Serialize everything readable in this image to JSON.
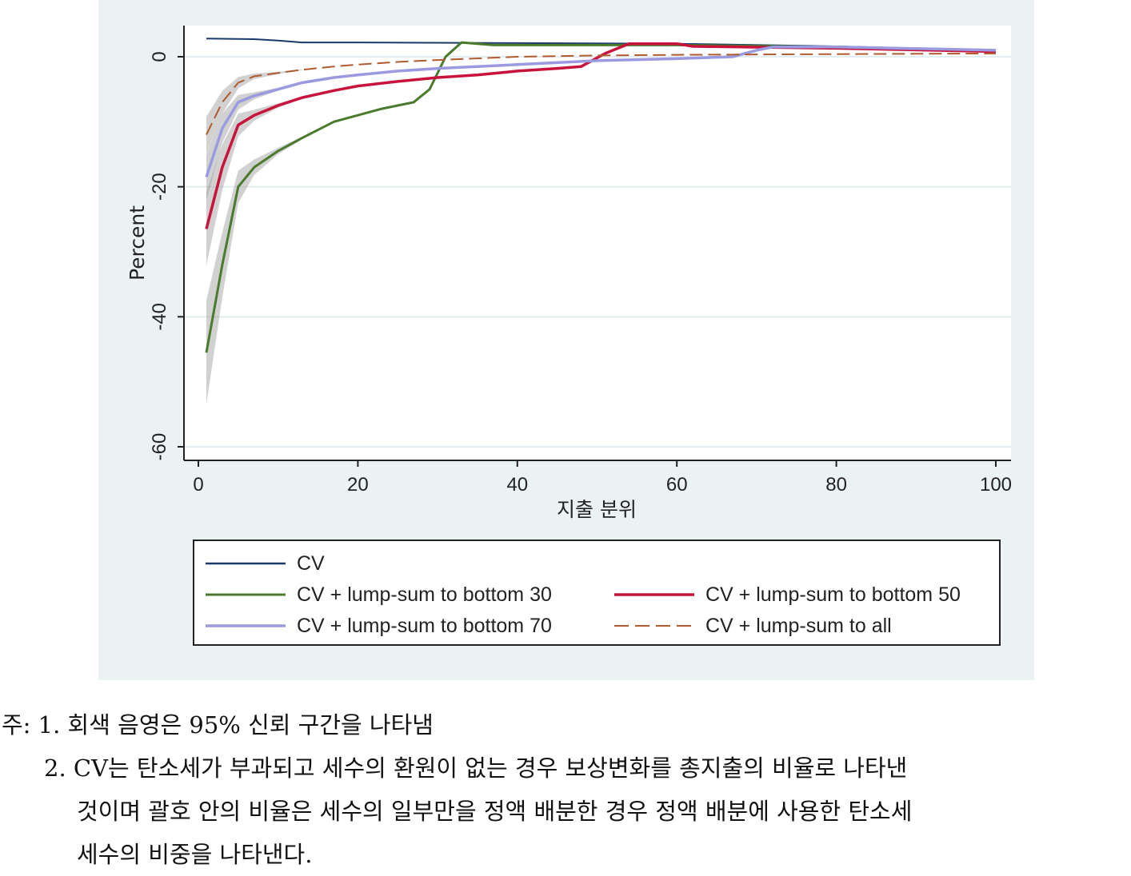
{
  "chart_data": {
    "type": "line",
    "title": "",
    "xlabel": "지출 분위",
    "ylabel": "Percent",
    "xlim": [
      0,
      100
    ],
    "ylim": [
      -60,
      5
    ],
    "x_ticks": [
      0,
      20,
      40,
      60,
      80,
      100
    ],
    "y_ticks": [
      0,
      -20,
      -40,
      -60
    ],
    "grid": true,
    "legend_position": "bottom",
    "shaded_band": "95% confidence interval (gray)",
    "series": [
      {
        "name": "CV",
        "color": "#1a3a6b",
        "dash": "solid",
        "points": [
          [
            1,
            2.8
          ],
          [
            7,
            2.7
          ],
          [
            10,
            2.5
          ],
          [
            13,
            2.2
          ],
          [
            20,
            2.2
          ],
          [
            40,
            2.1
          ],
          [
            60,
            2.0
          ],
          [
            80,
            1.6
          ],
          [
            100,
            1.0
          ]
        ]
      },
      {
        "name": "CV + lump-sum to bottom 30",
        "color": "#4a7a2c",
        "dash": "solid",
        "points": [
          [
            1,
            -45.5
          ],
          [
            3,
            -32
          ],
          [
            5,
            -20
          ],
          [
            7,
            -17
          ],
          [
            10,
            -14.5
          ],
          [
            13,
            -12.5
          ],
          [
            17,
            -10
          ],
          [
            20,
            -9
          ],
          [
            23,
            -8
          ],
          [
            27,
            -7
          ],
          [
            29,
            -5
          ],
          [
            31,
            0
          ],
          [
            33,
            2.2
          ],
          [
            37,
            1.8
          ],
          [
            50,
            1.8
          ],
          [
            60,
            1.8
          ],
          [
            80,
            1.5
          ],
          [
            100,
            1.0
          ]
        ]
      },
      {
        "name": "CV + lump-sum to bottom 50",
        "color": "#c8143c",
        "dash": "solid",
        "points": [
          [
            1,
            -26.5
          ],
          [
            3,
            -17
          ],
          [
            5,
            -10.5
          ],
          [
            7,
            -9
          ],
          [
            10,
            -7.5
          ],
          [
            13,
            -6.3
          ],
          [
            17,
            -5.2
          ],
          [
            20,
            -4.5
          ],
          [
            25,
            -3.8
          ],
          [
            30,
            -3.2
          ],
          [
            35,
            -2.8
          ],
          [
            40,
            -2.2
          ],
          [
            45,
            -1.8
          ],
          [
            48,
            -1.5
          ],
          [
            51,
            0.5
          ],
          [
            54,
            2.0
          ],
          [
            60,
            2.0
          ],
          [
            62,
            1.6
          ],
          [
            80,
            1.3
          ],
          [
            100,
            0.8
          ]
        ]
      },
      {
        "name": "CV + lump-sum to bottom 70",
        "color": "#9a9ae0",
        "dash": "solid",
        "points": [
          [
            1,
            -18.5
          ],
          [
            3,
            -11
          ],
          [
            5,
            -7
          ],
          [
            7,
            -6
          ],
          [
            10,
            -5
          ],
          [
            13,
            -4
          ],
          [
            17,
            -3.2
          ],
          [
            20,
            -2.8
          ],
          [
            25,
            -2.2
          ],
          [
            30,
            -1.8
          ],
          [
            40,
            -1.2
          ],
          [
            50,
            -0.6
          ],
          [
            60,
            -0.3
          ],
          [
            67,
            0
          ],
          [
            70,
            1.0
          ],
          [
            72,
            1.5
          ],
          [
            80,
            1.5
          ],
          [
            100,
            1.0
          ]
        ]
      },
      {
        "name": "CV + lump-sum to all",
        "color": "#b05a30",
        "dash": "dashed",
        "points": [
          [
            1,
            -12
          ],
          [
            3,
            -7
          ],
          [
            5,
            -4
          ],
          [
            7,
            -3
          ],
          [
            10,
            -2.5
          ],
          [
            13,
            -2
          ],
          [
            17,
            -1.5
          ],
          [
            20,
            -1.2
          ],
          [
            25,
            -0.8
          ],
          [
            30,
            -0.5
          ],
          [
            40,
            0
          ],
          [
            50,
            0.2
          ],
          [
            60,
            0.3
          ],
          [
            80,
            0.4
          ],
          [
            100,
            0.5
          ]
        ]
      }
    ]
  },
  "legend": {
    "items": [
      {
        "label": "CV",
        "color": "#1a3a6b",
        "dash": "solid"
      },
      {
        "label": "CV + lump-sum to bottom 30",
        "color": "#4a7a2c",
        "dash": "solid"
      },
      {
        "label": "CV + lump-sum to bottom 50",
        "color": "#c8143c",
        "dash": "solid"
      },
      {
        "label": "CV + lump-sum to bottom 70",
        "color": "#9a9ae0",
        "dash": "solid"
      },
      {
        "label": "CV + lump-sum to all",
        "color": "#b05a30",
        "dash": "dashed"
      }
    ]
  },
  "notes": {
    "line1": "주: 1. 회색 음영은 95% 신뢰 구간을 나타냄",
    "line2": "2. CV는 탄소세가 부과되고 세수의 환원이 없는 경우 보상변화를 총지출의 비율로 나타낸",
    "line3": "것이며 괄호 안의 비율은 세수의 일부만을 정액 배분한 경우 정액 배분에 사용한 탄소세",
    "line4": "세수의 비중을 나타낸다."
  }
}
